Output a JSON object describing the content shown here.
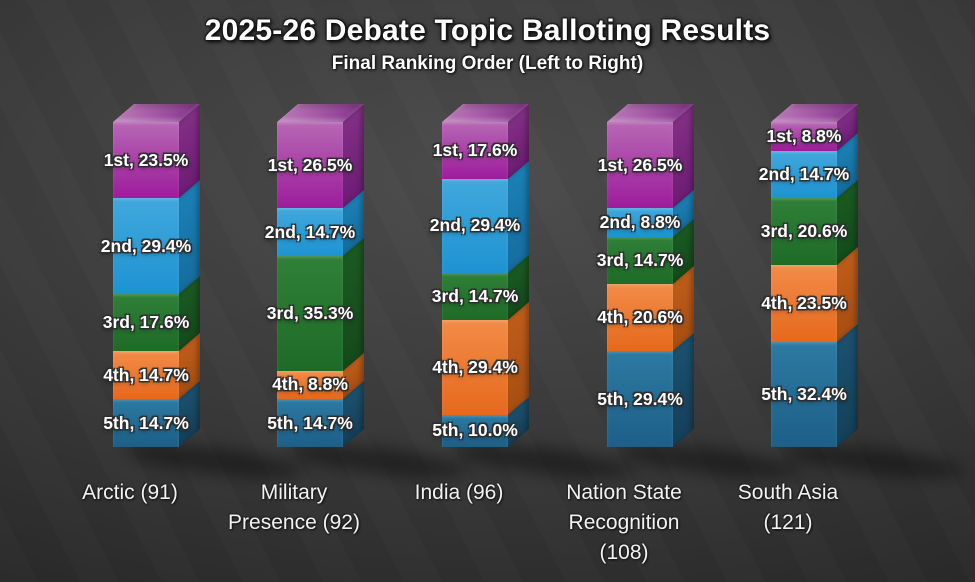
{
  "slide": {
    "title": "2025-26 Debate Topic Balloting Results",
    "subtitle": "Final Ranking Order (Left to Right)"
  },
  "chart_data": {
    "type": "bar",
    "variant": "3d-stacked-column-100pct",
    "stacked": true,
    "value_unit": "%",
    "legend": "none",
    "grid": false,
    "categories": [
      "Arctic (91)",
      "Military Presence (92)",
      "India (96)",
      "Nation State Recognition (108)",
      "South Asia (121)"
    ],
    "category_label_lines": [
      [
        "Arctic (91)"
      ],
      [
        "Military",
        "Presence (92)"
      ],
      [
        "India (96)"
      ],
      [
        "Nation State",
        "Recognition",
        "(108)"
      ],
      [
        "South Asia",
        "(121)"
      ]
    ],
    "series": [
      {
        "name": "1st",
        "values": [
          23.5,
          26.5,
          17.6,
          26.5,
          8.8
        ]
      },
      {
        "name": "2nd",
        "values": [
          29.4,
          14.7,
          29.4,
          8.8,
          14.7
        ]
      },
      {
        "name": "3rd",
        "values": [
          17.6,
          35.3,
          14.7,
          14.7,
          20.6
        ]
      },
      {
        "name": "4th",
        "values": [
          14.7,
          8.8,
          29.4,
          20.6,
          23.5
        ]
      },
      {
        "name": "5th",
        "values": [
          14.7,
          14.7,
          10.0,
          29.4,
          32.4
        ]
      }
    ],
    "segment_label_format": "{rank}, {value}%",
    "colors": {
      "1st": {
        "front_top": "#b768b4",
        "front_bottom": "#9d1c9c",
        "side_top": "#823086",
        "side_bottom": "#6d1c74",
        "top_face_front": "#ba74b7",
        "top_face_back": "#8d3a92"
      },
      "2nd": {
        "front_top": "#41a8dc",
        "front_bottom": "#1e93d2",
        "side_top": "#1b80b6",
        "side_bottom": "#156d9e"
      },
      "3rd": {
        "front_top": "#2f8038",
        "front_bottom": "#1e6b27",
        "side_top": "#1b5a22",
        "side_bottom": "#144a1a"
      },
      "4th": {
        "front_top": "#f28c48",
        "front_bottom": "#e5691d",
        "side_top": "#bf5d1a",
        "side_bottom": "#a64e12"
      },
      "5th": {
        "front_top": "#2c7aa3",
        "front_bottom": "#1d5f87",
        "side_top": "#1b516f",
        "side_bottom": "#153f58"
      }
    },
    "text_colors": {
      "segment_label": "#ffffff",
      "category_label": "#f2f2f2",
      "title": "#ffffff"
    },
    "background": {
      "center": "#4b4b4b",
      "edge": "#212121"
    }
  }
}
